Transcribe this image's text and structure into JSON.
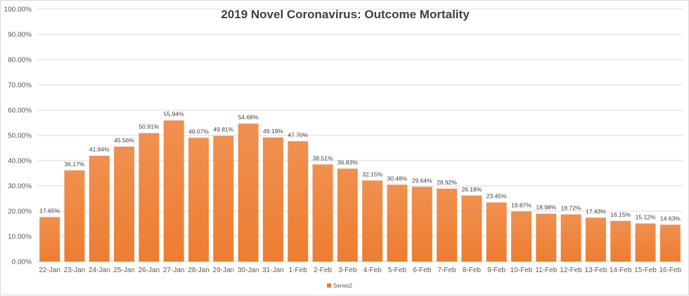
{
  "chart_data": {
    "type": "bar",
    "title": "2019 Novel Coronavirus: Outcome Mortality",
    "xlabel": "",
    "ylabel": "",
    "ylim": [
      0,
      100
    ],
    "y_ticks": [
      "0.00%",
      "10.00%",
      "20.00%",
      "30.00%",
      "40.00%",
      "50.00%",
      "60.00%",
      "70.00%",
      "80.00%",
      "90.00%",
      "100.00%"
    ],
    "grid": true,
    "legend": {
      "position": "bottom",
      "entries": [
        "Series2"
      ]
    },
    "colors": {
      "bar": "#ed7d31",
      "bar_top": "#f0904f",
      "grid": "#d9d9d9"
    },
    "categories": [
      "22-Jan",
      "23-Jan",
      "24-Jan",
      "25-Jan",
      "26-Jan",
      "27-Jan",
      "28-Jan",
      "29-Jan",
      "30-Jan",
      "31-Jan",
      "1-Feb",
      "2-Feb",
      "3-Feb",
      "4-Feb",
      "5-Feb",
      "6-Feb",
      "7-Feb",
      "8-Feb",
      "9-Feb",
      "10-Feb",
      "11-Feb",
      "12-Feb",
      "13-Feb",
      "14-Feb",
      "15-Feb",
      "16-Feb"
    ],
    "series": [
      {
        "name": "Series2",
        "values": [
          17.65,
          36.17,
          41.94,
          45.56,
          50.91,
          55.94,
          49.07,
          49.81,
          54.66,
          49.19,
          47.7,
          38.51,
          36.83,
          32.15,
          30.48,
          29.64,
          28.92,
          26.18,
          23.45,
          19.87,
          18.98,
          18.72,
          17.43,
          16.15,
          15.12,
          14.63
        ],
        "labels": [
          "17.65%",
          "36.17%",
          "41.94%",
          "45.56%",
          "50.91%",
          "55.94%",
          "49.07%",
          "49.81%",
          "54.66%",
          "49.19%",
          "47.70%",
          "38.51%",
          "36.83%",
          "32.15%",
          "30.48%",
          "29.64%",
          "28.92%",
          "26.18%",
          "23.45%",
          "19.87%",
          "18.98%",
          "18.72%",
          "17.43%",
          "16.15%",
          "15.12%",
          "14.63%"
        ]
      }
    ]
  }
}
